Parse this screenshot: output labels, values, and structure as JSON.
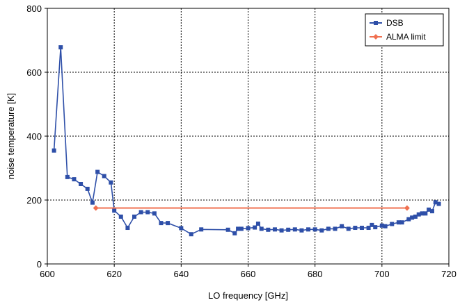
{
  "chart_data": {
    "type": "line",
    "xlabel": "LO frequency [GHz]",
    "ylabel": "noise temperature [K]",
    "xlim": [
      600,
      720
    ],
    "ylim": [
      0,
      800
    ],
    "x_ticks": [
      600,
      620,
      640,
      660,
      680,
      700,
      720
    ],
    "y_ticks": [
      0,
      200,
      400,
      600,
      800
    ],
    "grid": true,
    "legend_position": "top-right",
    "series": [
      {
        "name": "DSB",
        "color": "#2e4fa8",
        "marker": "square",
        "points": [
          [
            602,
            355
          ],
          [
            604,
            678
          ],
          [
            606,
            272
          ],
          [
            608,
            265
          ],
          [
            610,
            250
          ],
          [
            612,
            235
          ],
          [
            613.5,
            192
          ],
          [
            615,
            288
          ],
          [
            617,
            275
          ],
          [
            619,
            255
          ],
          [
            620,
            167
          ],
          [
            622,
            148
          ],
          [
            624,
            113
          ],
          [
            626,
            148
          ],
          [
            628,
            162
          ],
          [
            630,
            162
          ],
          [
            632,
            158
          ],
          [
            634,
            128
          ],
          [
            636,
            128
          ],
          [
            640,
            112
          ],
          [
            643,
            93
          ],
          [
            646,
            108
          ],
          [
            654,
            107
          ],
          [
            656,
            96
          ],
          [
            657,
            110
          ],
          [
            658,
            110
          ],
          [
            660,
            112
          ],
          [
            662,
            114
          ],
          [
            663,
            126
          ],
          [
            664,
            110
          ],
          [
            666,
            107
          ],
          [
            668,
            108
          ],
          [
            670,
            105
          ],
          [
            672,
            107
          ],
          [
            674,
            108
          ],
          [
            676,
            105
          ],
          [
            678,
            108
          ],
          [
            680,
            108
          ],
          [
            682,
            105
          ],
          [
            684,
            110
          ],
          [
            686,
            110
          ],
          [
            688,
            118
          ],
          [
            690,
            110
          ],
          [
            692,
            113
          ],
          [
            694,
            113
          ],
          [
            696,
            113
          ],
          [
            697,
            122
          ],
          [
            698,
            115
          ],
          [
            700,
            120
          ],
          [
            701,
            118
          ],
          [
            703,
            125
          ],
          [
            705,
            130
          ],
          [
            706,
            130
          ],
          [
            708,
            140
          ],
          [
            709,
            145
          ],
          [
            710,
            148
          ],
          [
            711,
            155
          ],
          [
            712,
            158
          ],
          [
            713,
            158
          ],
          [
            714,
            170
          ],
          [
            715,
            165
          ],
          [
            716,
            193
          ],
          [
            717,
            188
          ]
        ]
      },
      {
        "name": "ALMA limit",
        "color": "#f07050",
        "marker": "diamond",
        "points": [
          [
            614.5,
            175
          ],
          [
            707.5,
            175
          ]
        ]
      }
    ]
  }
}
